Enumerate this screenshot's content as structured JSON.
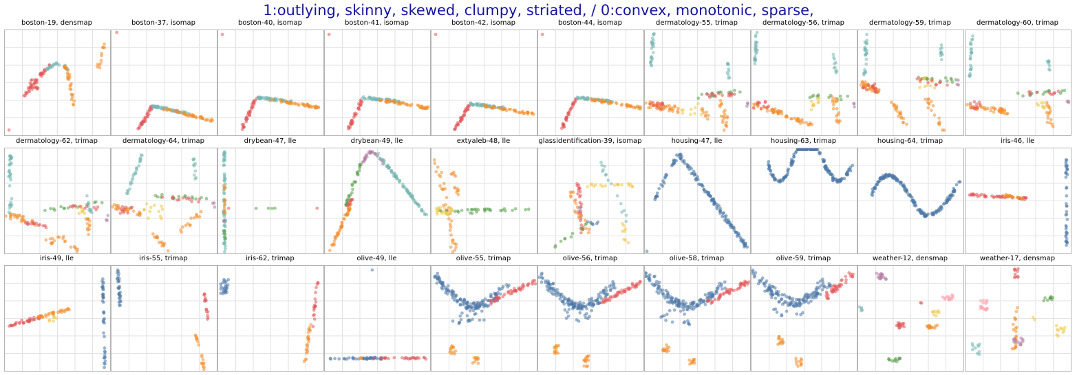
{
  "figure": {
    "suptitle": "1:outlying, skinny, skewed, clumpy, striated,  / 0:convex, monotonic, sparse,"
  },
  "colors": {
    "red": "#e15759",
    "orange": "#f28e2b",
    "teal": "#76b7b2",
    "blue": "#4e79a7",
    "green": "#59a14f",
    "yellow": "#edc948",
    "purple": "#b07aa1",
    "pink": "#ff9da7"
  },
  "chart_data": [
    {
      "type": "scatter",
      "title": "boston-19, densmap"
    },
    {
      "type": "scatter",
      "title": "boston-37, isomap"
    },
    {
      "type": "scatter",
      "title": "boston-40, isomap"
    },
    {
      "type": "scatter",
      "title": "boston-41, isomap"
    },
    {
      "type": "scatter",
      "title": "boston-42, isomap"
    },
    {
      "type": "scatter",
      "title": "boston-44, isomap"
    },
    {
      "type": "scatter",
      "title": "dermatology-55, trimap"
    },
    {
      "type": "scatter",
      "title": "dermatology-56, trimap"
    },
    {
      "type": "scatter",
      "title": "dermatology-59, trimap"
    },
    {
      "type": "scatter",
      "title": "dermatology-60, trimap"
    },
    {
      "type": "scatter",
      "title": "dermatology-62, trimap"
    },
    {
      "type": "scatter",
      "title": "dermatology-64, trimap"
    },
    {
      "type": "scatter",
      "title": "drybean-47, lle"
    },
    {
      "type": "scatter",
      "title": "drybean-49, lle"
    },
    {
      "type": "scatter",
      "title": "extyaleb-48, lle"
    },
    {
      "type": "scatter",
      "title": "glassidentification-39, isomap"
    },
    {
      "type": "scatter",
      "title": "housing-47, lle"
    },
    {
      "type": "scatter",
      "title": "housing-63, trimap"
    },
    {
      "type": "scatter",
      "title": "housing-64, trimap"
    },
    {
      "type": "scatter",
      "title": "iris-46, lle"
    },
    {
      "type": "scatter",
      "title": "iris-49, lle"
    },
    {
      "type": "scatter",
      "title": "iris-55, trimap"
    },
    {
      "type": "scatter",
      "title": "iris-62, trimap"
    },
    {
      "type": "scatter",
      "title": "olive-49, lle"
    },
    {
      "type": "scatter",
      "title": "olive-55, trimap"
    },
    {
      "type": "scatter",
      "title": "olive-56, trimap"
    },
    {
      "type": "scatter",
      "title": "olive-58, trimap"
    },
    {
      "type": "scatter",
      "title": "olive-59, trimap"
    },
    {
      "type": "scatter",
      "title": "weather-12, densmap"
    },
    {
      "type": "scatter",
      "title": "weather-17, densmap"
    }
  ]
}
